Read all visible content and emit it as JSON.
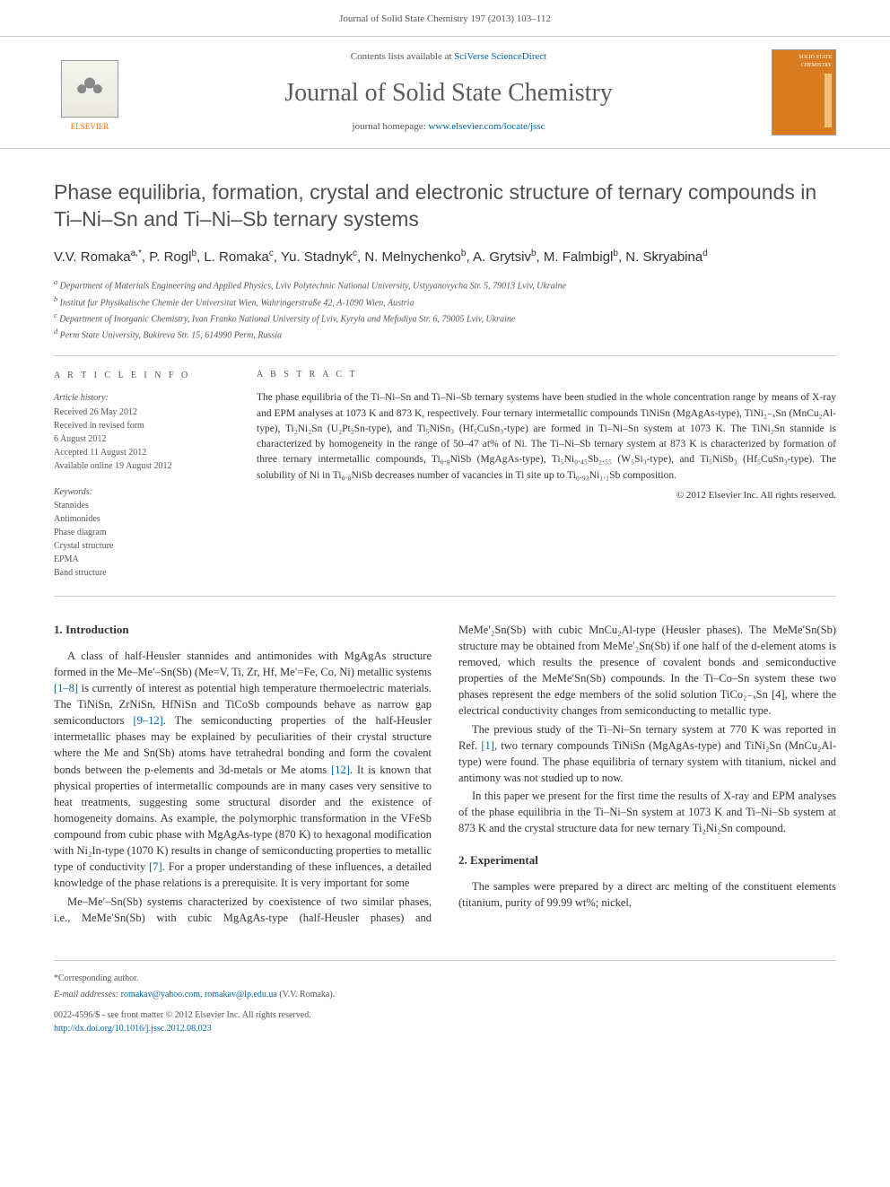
{
  "running_head": "Journal of Solid State Chemistry 197 (2013) 103–112",
  "masthead": {
    "contents_prefix": "Contents lists available at ",
    "contents_link": "SciVerse ScienceDirect",
    "journal_name": "Journal of Solid State Chemistry",
    "homepage_prefix": "journal homepage: ",
    "homepage_url": "www.elsevier.com/locate/jssc",
    "publisher": "ELSEVIER",
    "cover_text": "SOLID STATE CHEMISTRY"
  },
  "title": "Phase equilibria, formation, crystal and electronic structure of ternary compounds in Ti–Ni–Sn and Ti–Ni–Sb ternary systems",
  "authors_html": "V.V. Romaka<sup>a,*</sup>, P. Rogl<sup>b</sup>, L. Romaka<sup>c</sup>, Yu. Stadnyk<sup>c</sup>, N. Melnychenko<sup>b</sup>, A. Grytsiv<sup>b</sup>, M. Falmbigl<sup>b</sup>, N. Skryabina<sup>d</sup>",
  "affiliations": [
    "a Department of Materials Engineering and Applied Physics, Lviv Polytechnic National University, Ustyyanovycha Str. 5, 79013 Lviv, Ukraine",
    "b Institut fur Physikalische Chemie der Universitat Wien, Wahringerstraße 42, A-1090 Wien, Austria",
    "c Department of Inorganic Chemistry, Ivan Franko National University of Lviv, Kyryla and Mefodiya Str. 6, 79005 Lviv, Ukraine",
    "d Perm State University, Bukireva Str. 15, 614990 Perm, Russia"
  ],
  "article_info": {
    "heading": "A R T I C L E  I N F O",
    "history_label": "Article history:",
    "history": [
      "Received 26 May 2012",
      "Received in revised form",
      "6 August 2012",
      "Accepted 11 August 2012",
      "Available online 19 August 2012"
    ],
    "keywords_label": "Keywords:",
    "keywords": [
      "Stannides",
      "Antimonides",
      "Phase diagram",
      "Crystal structure",
      "EPMA",
      "Band structure"
    ]
  },
  "abstract": {
    "heading": "A B S T R A C T",
    "text": "The phase equilibria of the Ti–Ni–Sn and Ti–Ni–Sb ternary systems have been studied in the whole concentration range by means of X-ray and EPM analyses at 1073 K and 873 K, respectively. Four ternary intermetallic compounds TiNiSn (MgAgAs-type), TiNi₂₋ₓSn (MnCu₂Al-type), Ti₂Ni₂Sn (U₂Pt₂Sn-type), and Ti₅NiSn₃ (Hf₅CuSn₃-type) are formed in Ti–Ni–Sn system at 1073 K. The TiNi₂Sn stannide is characterized by homogeneity in the range of 50–47 at% of Ni. The Ti–Ni–Sb ternary system at 873 K is characterized by formation of three ternary intermetallic compounds, Ti₀.₈NiSb (MgAgAs-type), Ti₅Ni₀.₄₅Sb₂.₅₅ (W₅Si₃-type), and Ti₅NiSb₃ (Hf₅CuSn₃-type). The solubility of Ni in Ti₀.₈NiSb decreases number of vacancies in Ti site up to Ti₀.₉₃Ni₁.₁Sb composition.",
    "copyright": "© 2012 Elsevier Inc. All rights reserved."
  },
  "sections": {
    "intro_heading": "1.  Introduction",
    "intro_p1": "A class of half-Heusler stannides and antimonides with MgAgAs structure formed in the Me–Me′–Sn(Sb) (Me=V, Ti, Zr, Hf, Me′=Fe, Co, Ni) metallic systems [1–8] is currently of interest as potential high temperature thermoelectric materials. The TiNiSn, ZrNiSn, HfNiSn and TiCoSb compounds behave as narrow gap semiconductors [9–12]. The semiconducting properties of the half-Heusler intermetallic phases may be explained by peculiarities of their crystal structure where the Me and Sn(Sb) atoms have tetrahedral bonding and form the covalent bonds between the p-elements and 3d-metals or Me atoms [12]. It is known that physical properties of intermetallic compounds are in many cases very sensitive to heat treatments, suggesting some structural disorder and the existence of homogeneity domains. As example, the polymorphic transformation in the VFeSb compound from cubic phase with MgAgAs-type (870 K) to hexagonal modification with Ni₂In-type (1070 K) results in change of semiconducting properties to metallic type of conductivity [7]. For a proper understanding of these influences, a detailed knowledge of the phase relations is a prerequisite. It is very important for some",
    "intro_p2": "Me–Me′–Sn(Sb) systems characterized by coexistence of two similar phases, i.e., MeMe′Sn(Sb) with cubic MgAgAs-type (half-Heusler phases) and MeMe′₂Sn(Sb) with cubic MnCu₂Al-type (Heusler phases). The MeMe′Sn(Sb) structure may be obtained from MeMe′₂Sn(Sb) if one half of the d-element atoms is removed, which results the presence of covalent bonds and semiconductive properties of the MeMe′Sn(Sb) compounds. In the Ti–Co–Sn system these two phases represent the edge members of the solid solution TiCo₂₋ₓSn [4], where the electrical conductivity changes from semiconducting to metallic type.",
    "intro_p3": "The previous study of the Ti–Ni–Sn ternary system at 770 K was reported in Ref. [1], two ternary compounds TiNiSn (MgAgAs-type) and TiNi₂Sn (MnCu₂Al-type) were found. The phase equilibria of ternary system with titanium, nickel and antimony was not studied up to now.",
    "intro_p4": "In this paper we present for the first time the results of X-ray and EPM analyses of the phase equilibria in the Ti–Ni–Sn system at 1073 K and Ti–Ni–Sb system at 873 K and the crystal structure data for new ternary Ti₂Ni₂Sn compound.",
    "exp_heading": "2.  Experimental",
    "exp_p1": "The samples were prepared by a direct arc melting of the constituent elements (titanium, purity of 99.99 wt%; nickel,"
  },
  "footer": {
    "corr": "*Corresponding author.",
    "emails_label": "E-mail addresses: ",
    "emails": "romakav@yahoo.com, romakav@lp.edu.ua",
    "emails_suffix": " (V.V. Romaka).",
    "issn": "0022-4596/$ - see front matter © 2012 Elsevier Inc. All rights reserved.",
    "doi_label": "http://dx.doi.org/",
    "doi": "10.1016/j.jssc.2012.08.023"
  },
  "colors": {
    "link": "#0066aa",
    "text": "#333333",
    "muted": "#555555",
    "rule": "#cccccc",
    "publisher": "#ff6600",
    "cover": "#d97b1f"
  },
  "typography": {
    "title_fontsize": 23,
    "journal_fontsize": 28,
    "body_fontsize": 12.5,
    "small_fontsize": 10
  }
}
